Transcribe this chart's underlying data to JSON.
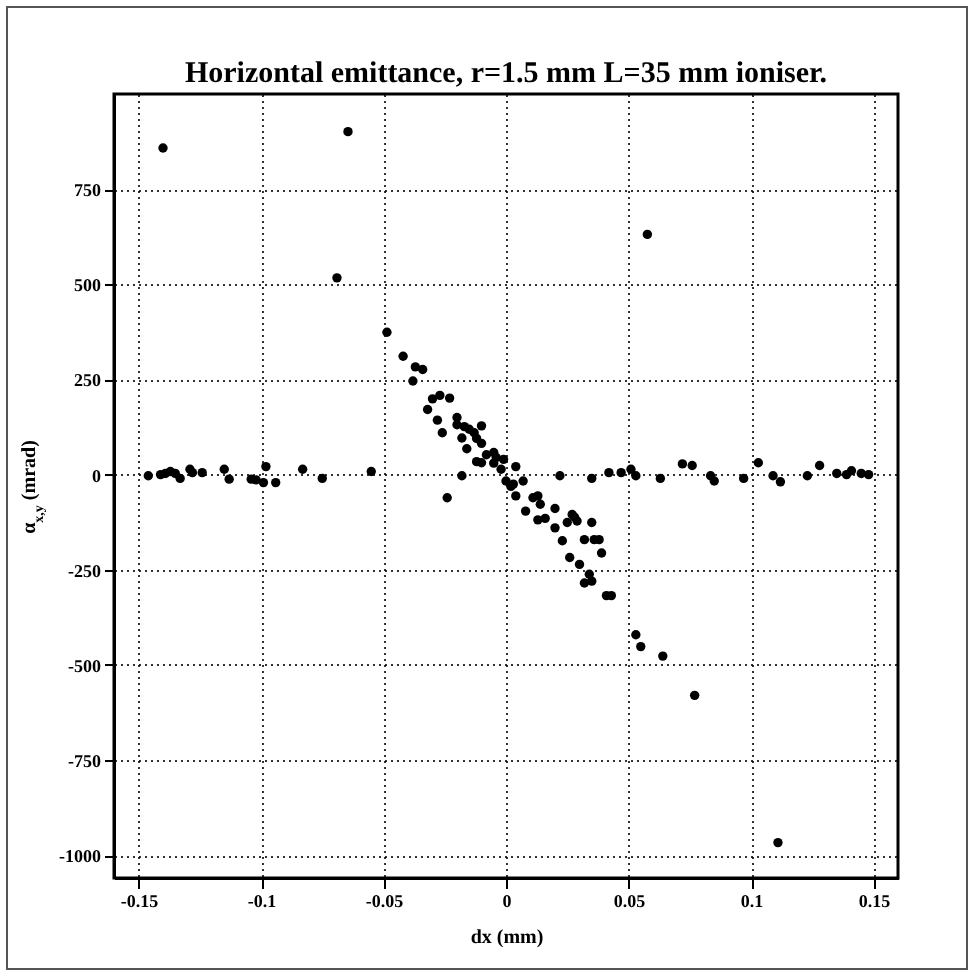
{
  "chart_data": {
    "type": "scatter",
    "title": "Horizontal emittance, r=1.5 mm L=35 mm ioniser.",
    "xlabel": "dx (mm)",
    "ylabel": "α$_{x,y}$ (mrad)",
    "xlim": [
      -0.16,
      0.16
    ],
    "ylim": [
      -1060,
      1000
    ],
    "xticks": [
      -0.15,
      -0.1,
      -0.05,
      0,
      0.05,
      0.1,
      0.15
    ],
    "yticks": [
      {
        "value": -1000,
        "label": "-1000"
      },
      -750,
      -500,
      -250,
      0,
      250,
      500,
      750
    ],
    "grid": true,
    "marker": "circle",
    "legend": false,
    "series": [
      {
        "color": "#000000",
        "x": [
          -0.14,
          -0.0645,
          -0.069,
          0.0577,
          0.032,
          0.035,
          0.041,
          0.043,
          0.053,
          0.055,
          0.064,
          0.077,
          0.111,
          -0.146,
          -0.141,
          -0.139,
          -0.137,
          -0.135,
          -0.133,
          -0.129,
          -0.128,
          -0.124,
          -0.115,
          -0.113,
          -0.104,
          -0.102,
          -0.099,
          -0.098,
          -0.094,
          -0.083,
          -0.075,
          -0.055,
          -0.0486,
          -0.042,
          -0.037,
          -0.034,
          -0.038,
          -0.03,
          -0.027,
          -0.023,
          -0.032,
          -0.028,
          -0.026,
          -0.02,
          -0.02,
          -0.017,
          -0.018,
          -0.016,
          -0.015,
          -0.013,
          -0.012,
          -0.01,
          -0.01,
          -0.01,
          -0.008,
          -0.005,
          -0.005,
          -0.001,
          -0.002,
          -0.018,
          -0.024,
          0.004,
          0.0,
          0.003,
          0.004,
          -0.012,
          -0.004,
          0.022,
          0.035,
          0.042,
          0.047,
          0.051,
          0.053,
          0.063,
          0.072,
          0.076,
          0.0835,
          0.085,
          0.097,
          0.103,
          0.109,
          0.112,
          0.123,
          0.128,
          0.135,
          0.139,
          0.141,
          0.145,
          0.148,
          0.002,
          0.007,
          0.008,
          0.011,
          0.013,
          0.014,
          0.013,
          0.016,
          0.02,
          0.02,
          0.023,
          0.025,
          0.027,
          0.028,
          0.029,
          0.035,
          0.032,
          0.036,
          0.038,
          0.039,
          0.026,
          0.03,
          0.034
        ],
        "values": [
          858,
          901,
          517,
          631,
          -285,
          -280,
          -318,
          -318,
          -421,
          -452,
          -477,
          -580,
          -967,
          -3,
          0,
          3,
          8,
          3,
          -10,
          14,
          5,
          5,
          14,
          -12,
          -12,
          -14,
          -21,
          21,
          -21,
          14,
          -10,
          8,
          374,
          311,
          283,
          276,
          246,
          199,
          208,
          201,
          171,
          143,
          110,
          150,
          131,
          126,
          96,
          68,
          119,
          110,
          95,
          128,
          82,
          31,
          52,
          58,
          30,
          40,
          14,
          -3,
          -61,
          21,
          -17,
          -25,
          -56,
          34,
          45,
          -3,
          -10,
          5,
          5,
          14,
          -3,
          -10,
          28,
          24,
          -3,
          -17,
          -10,
          31,
          -3,
          -19,
          -3,
          24,
          3,
          0,
          10,
          3,
          0,
          -31,
          -17,
          -96,
          -61,
          -56,
          -78,
          -119,
          -115,
          -89,
          -140,
          -174,
          -126,
          -105,
          -112,
          -122,
          -126,
          -171,
          -171,
          -171,
          -206,
          -218,
          -236,
          -262
        ]
      }
    ]
  }
}
